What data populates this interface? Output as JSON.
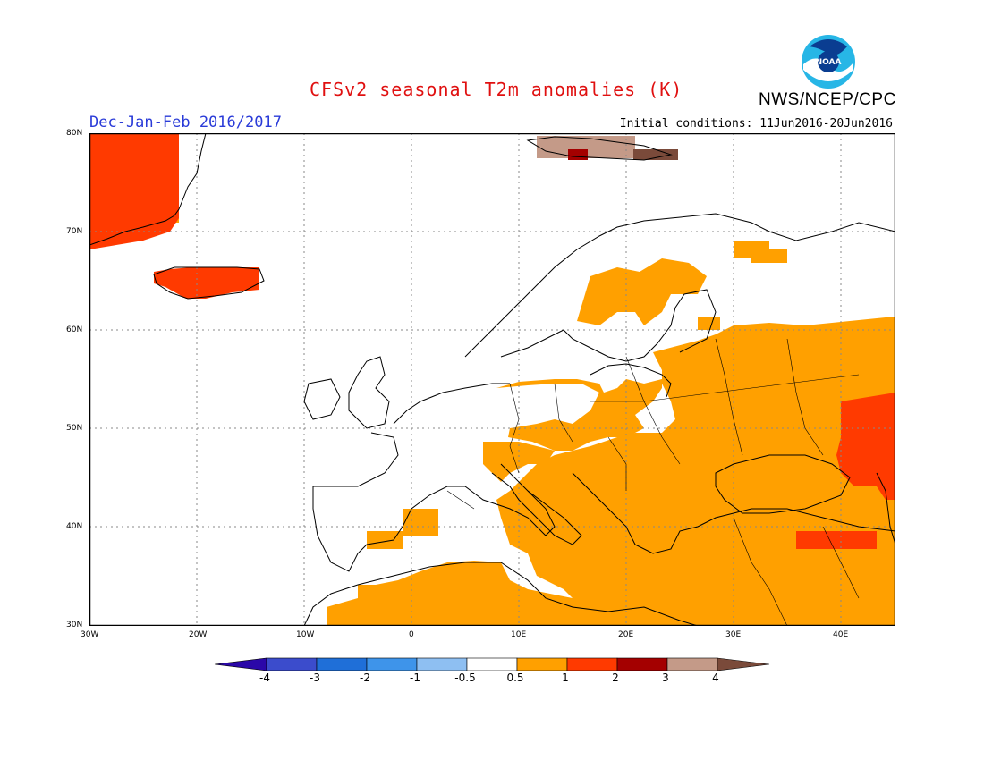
{
  "title": "CFSv2 seasonal T2m anomalies (K)",
  "organization": "NWS/NCEP/CPC",
  "season": "Dec-Jan-Feb 2016/2017",
  "initial_conditions": "Initial conditions: 11Jun2016-20Jun2016",
  "logo_text": "NOAA",
  "lat_ticks": [
    "80N",
    "70N",
    "60N",
    "50N",
    "40N",
    "30N"
  ],
  "lon_ticks": [
    "30W",
    "20W",
    "10W",
    "0",
    "10E",
    "20E",
    "30E",
    "40E"
  ],
  "legend": {
    "labels": [
      "-4",
      "-3",
      "-2",
      "-1",
      "-0.5",
      "0.5",
      "1",
      "2",
      "3",
      "4"
    ],
    "colors": [
      "#2b08a8",
      "#3b4ccc",
      "#1f6fd8",
      "#3e94ea",
      "#8ebff2",
      "#ffffff",
      "#ffa000",
      "#ff3a00",
      "#a40000",
      "#c49a88",
      "#7a4a3a"
    ]
  },
  "anomaly_colors": {
    "above_0_5": "#ffa000",
    "above_1": "#ff3a00",
    "above_2": "#a40000",
    "above_3": "#c49a88",
    "above_4": "#7a4a3a"
  }
}
